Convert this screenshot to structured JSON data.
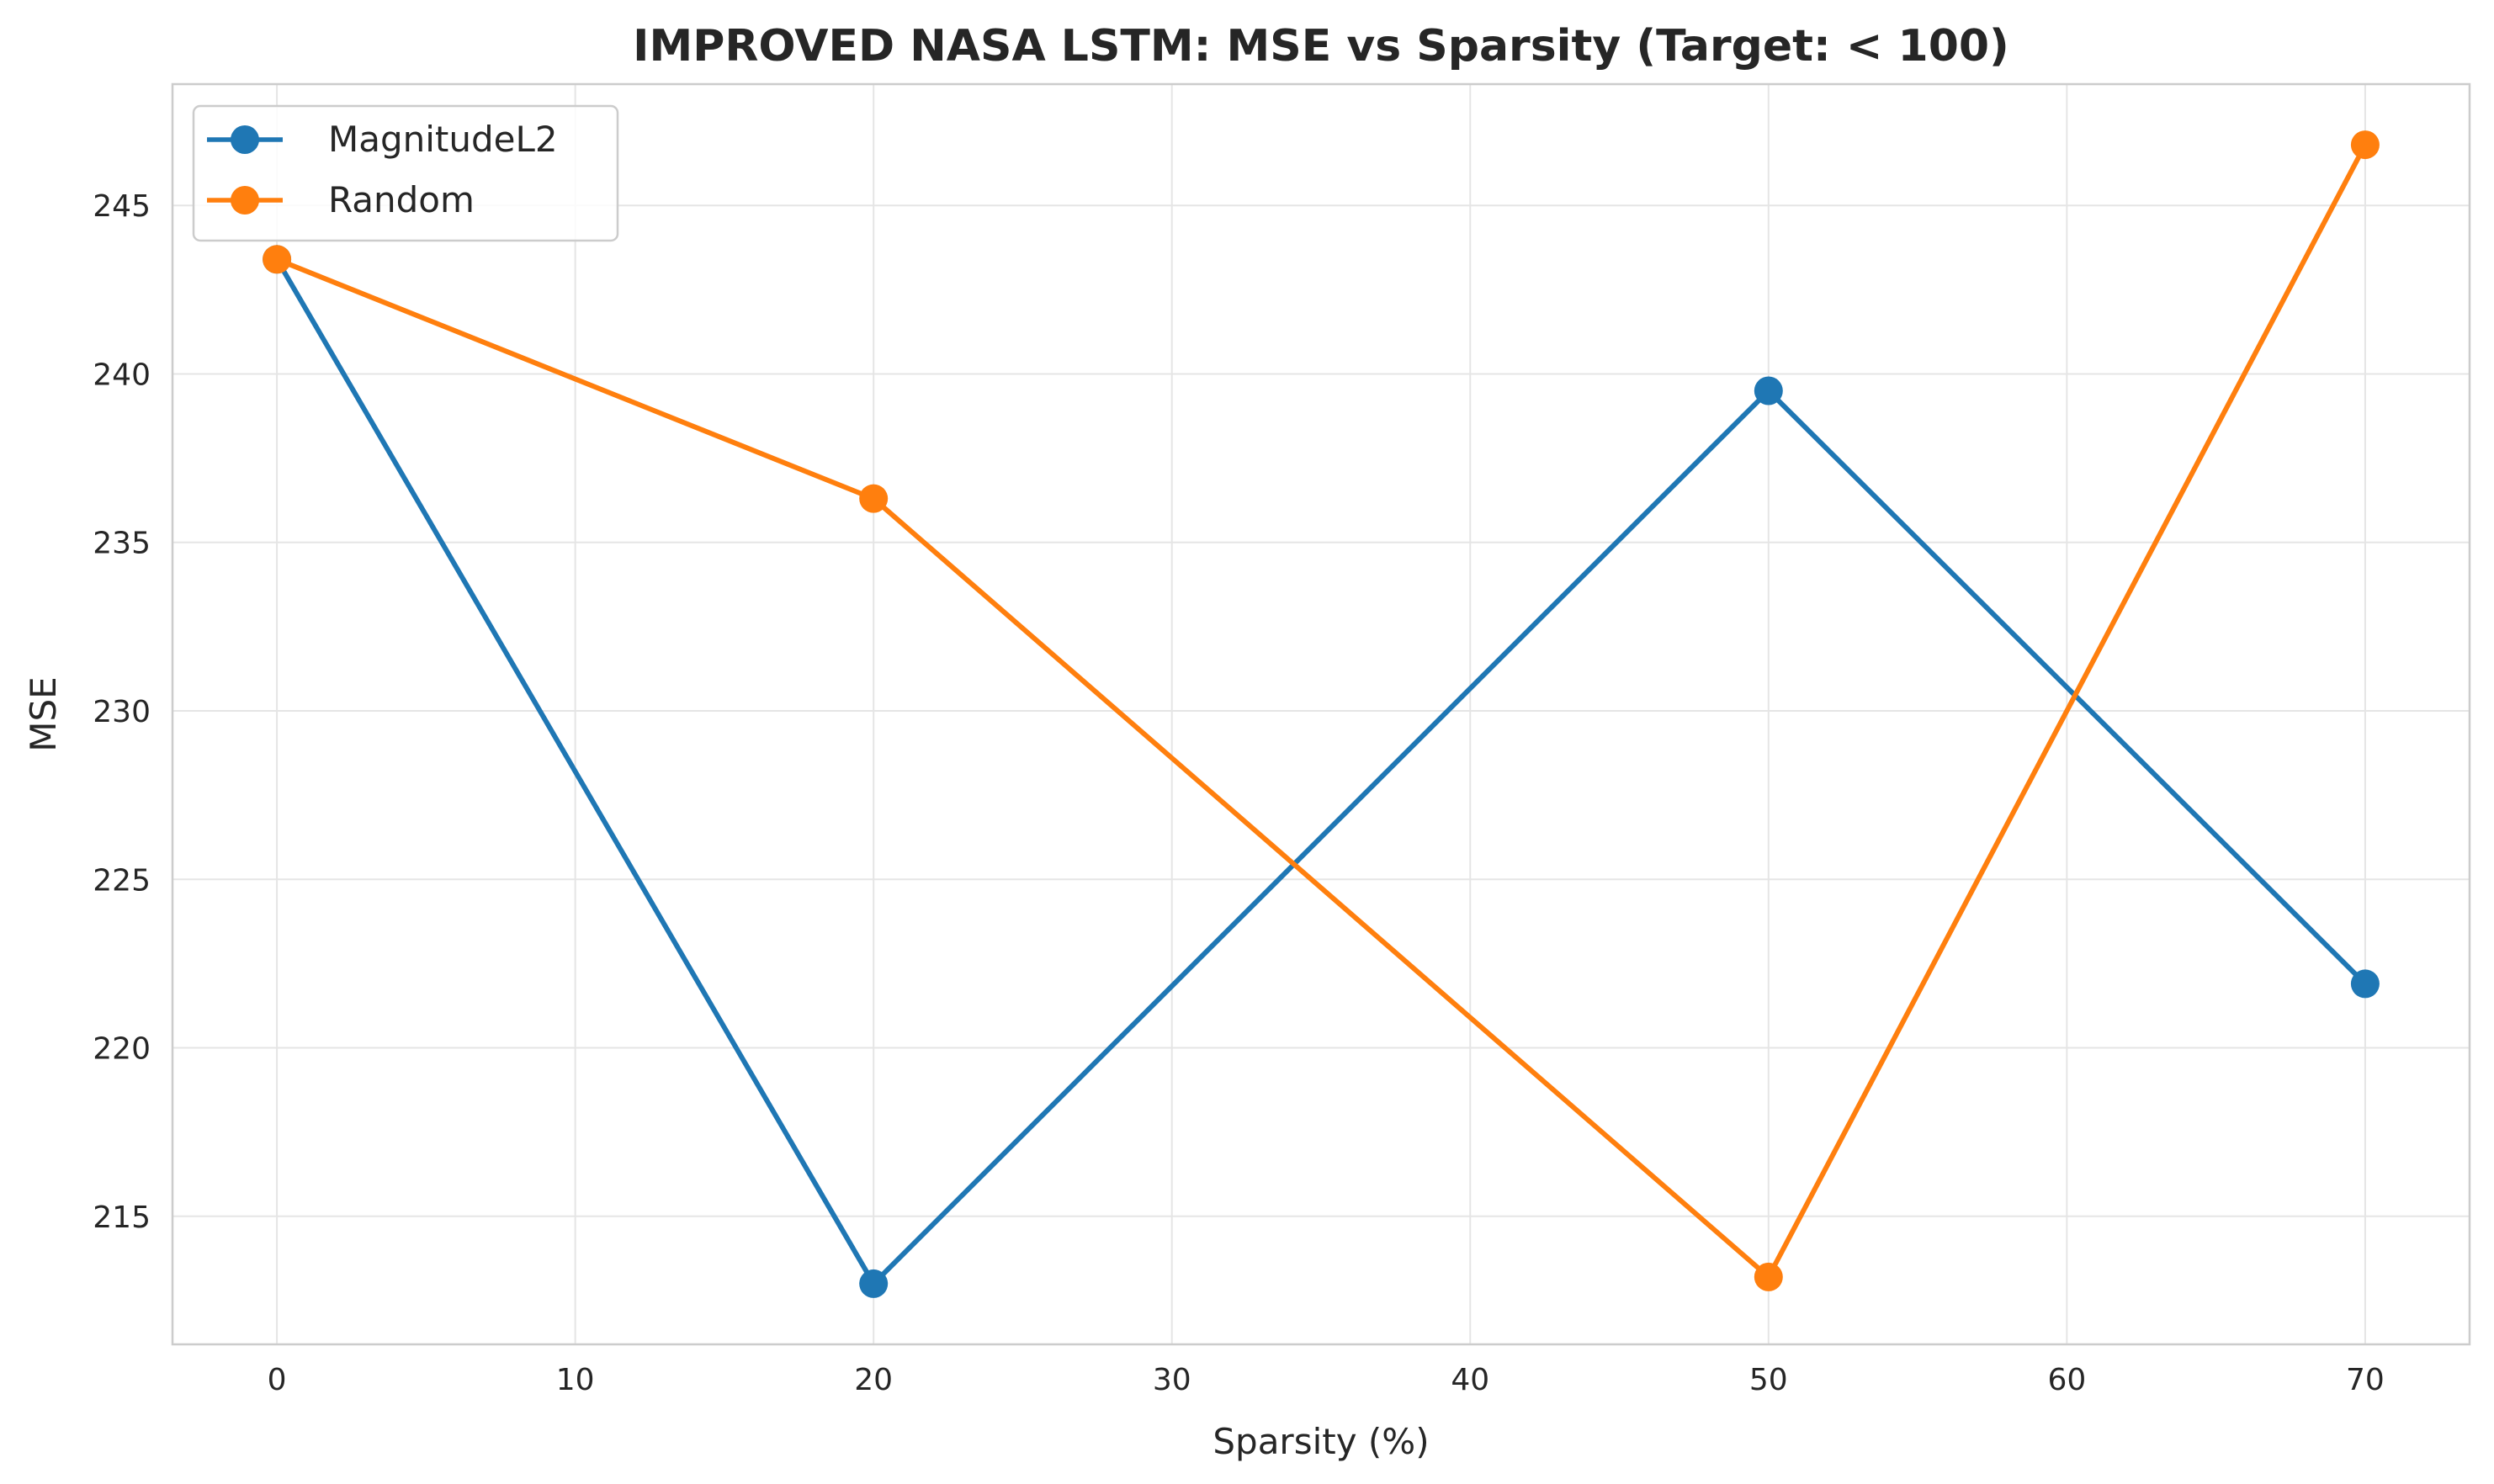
{
  "chart_data": {
    "type": "line",
    "title": "IMPROVED NASA LSTM: MSE vs Sparsity (Target: < 100)",
    "xlabel": "Sparsity (%)",
    "ylabel": "MSE",
    "xlim": [
      -3.5,
      73.5
    ],
    "ylim": [
      211.2,
      248.6
    ],
    "xticks": [
      0,
      10,
      20,
      30,
      40,
      50,
      60,
      70
    ],
    "yticks": [
      215,
      220,
      225,
      230,
      235,
      240,
      245
    ],
    "grid": true,
    "legend_position": "top-left",
    "series": [
      {
        "name": "MagnitudeL2",
        "color": "#1f77b4",
        "x": [
          0,
          20,
          50,
          70
        ],
        "values": [
          243.4,
          213.0,
          239.5,
          221.9
        ]
      },
      {
        "name": "Random",
        "color": "#ff7f0e",
        "x": [
          0,
          20,
          50,
          70
        ],
        "values": [
          243.4,
          236.3,
          213.2,
          246.8
        ]
      }
    ]
  }
}
